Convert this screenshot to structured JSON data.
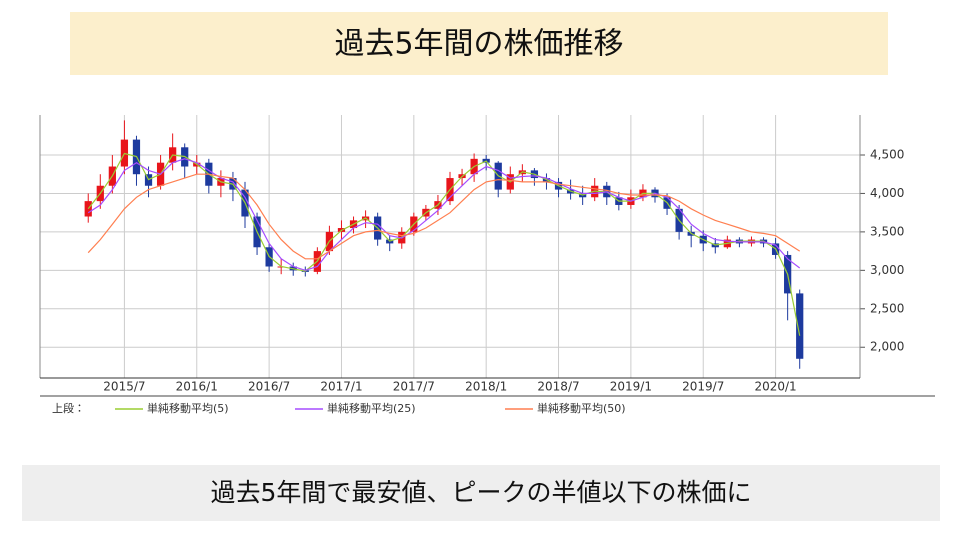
{
  "slide": {
    "title": "過去5年間の株価推移",
    "caption": "過去5年間で最安値、ピークの半値以下の株価に"
  },
  "chart_data": {
    "type": "candlestick",
    "xlim": [
      -4,
      64
    ],
    "xticks": [
      {
        "value": 3,
        "label": "2015/7"
      },
      {
        "value": 9,
        "label": "2016/1"
      },
      {
        "value": 15,
        "label": "2016/7"
      },
      {
        "value": 21,
        "label": "2017/1"
      },
      {
        "value": 27,
        "label": "2017/7"
      },
      {
        "value": 33,
        "label": "2018/1"
      },
      {
        "value": 39,
        "label": "2018/7"
      },
      {
        "value": 45,
        "label": "2019/1"
      },
      {
        "value": 51,
        "label": "2019/7"
      },
      {
        "value": 57,
        "label": "2020/1"
      }
    ],
    "ylim": [
      1600,
      5020
    ],
    "yticks": [
      {
        "value": 2000,
        "label": "2,000"
      },
      {
        "value": 2500,
        "label": "2,500"
      },
      {
        "value": 3000,
        "label": "3,000"
      },
      {
        "value": 3500,
        "label": "3,500"
      },
      {
        "value": 4000,
        "label": "4,000"
      },
      {
        "value": 4500,
        "label": "4,500"
      }
    ],
    "grid": true,
    "up_color": "#e8151b",
    "down_color": "#1d3a9e",
    "open": [
      3700,
      3900,
      4100,
      4350,
      4700,
      4250,
      4100,
      4400,
      4600,
      4350,
      4400,
      4100,
      4200,
      4050,
      3700,
      3300,
      3050,
      3050,
      3000,
      2980,
      3250,
      3500,
      3550,
      3650,
      3700,
      3400,
      3350,
      3500,
      3700,
      3800,
      3900,
      4200,
      4250,
      4450,
      4400,
      4050,
      4250,
      4300,
      4200,
      4150,
      4050,
      4000,
      3950,
      4100,
      3950,
      3850,
      3950,
      4050,
      3950,
      3800,
      3500,
      3450,
      3350,
      3300,
      3400,
      3350,
      3400,
      3350,
      3200,
      2700
    ],
    "high": [
      4000,
      4250,
      4500,
      4950,
      4750,
      4350,
      4500,
      4780,
      4650,
      4500,
      4450,
      4300,
      4280,
      4150,
      3750,
      3350,
      3150,
      3100,
      3050,
      3300,
      3580,
      3650,
      3700,
      3780,
      3750,
      3450,
      3560,
      3750,
      3850,
      3980,
      4280,
      4320,
      4520,
      4500,
      4420,
      4350,
      4380,
      4330,
      4260,
      4200,
      4180,
      4100,
      4200,
      4150,
      4020,
      4050,
      4120,
      4080,
      4000,
      3850,
      3580,
      3520,
      3420,
      3450,
      3430,
      3440,
      3430,
      3420,
      3250,
      2750
    ],
    "low": [
      3620,
      3800,
      4000,
      4250,
      4100,
      3950,
      4050,
      4300,
      4200,
      4250,
      4000,
      3950,
      3900,
      3550,
      3200,
      2980,
      2950,
      2930,
      2920,
      2950,
      3200,
      3400,
      3480,
      3550,
      3320,
      3250,
      3280,
      3450,
      3650,
      3720,
      3850,
      4100,
      4150,
      4300,
      3950,
      4000,
      4150,
      4100,
      4050,
      3950,
      3920,
      3850,
      3900,
      3850,
      3780,
      3800,
      3900,
      3880,
      3720,
      3400,
      3300,
      3250,
      3220,
      3280,
      3300,
      3310,
      3300,
      3150,
      2350,
      1720
    ],
    "close": [
      3900,
      4100,
      4350,
      4700,
      4250,
      4100,
      4400,
      4600,
      4350,
      4400,
      4100,
      4200,
      4050,
      3700,
      3300,
      3050,
      3050,
      3000,
      2980,
      3250,
      3500,
      3550,
      3650,
      3700,
      3400,
      3350,
      3500,
      3700,
      3800,
      3900,
      4200,
      4250,
      4450,
      4400,
      4050,
      4250,
      4300,
      4200,
      4150,
      4050,
      4000,
      3950,
      4100,
      3950,
      3850,
      3950,
      4050,
      3950,
      3800,
      3500,
      3450,
      3350,
      3300,
      3400,
      3350,
      3400,
      3350,
      3200,
      2700,
      1850
    ],
    "legend_title": "上段：",
    "series": [
      {
        "name": "単純移動平均(5)",
        "color": "#9acd32",
        "values": [
          3800,
          4000,
          4230,
          4520,
          4480,
          4180,
          4250,
          4500,
          4480,
          4380,
          4250,
          4150,
          4120,
          3880,
          3500,
          3180,
          3050,
          3020,
          2990,
          3120,
          3380,
          3520,
          3600,
          3680,
          3550,
          3380,
          3430,
          3600,
          3750,
          3850,
          4050,
          4220,
          4350,
          4420,
          4230,
          4150,
          4280,
          4250,
          4180,
          4100,
          4030,
          3980,
          4030,
          4020,
          3900,
          3900,
          4000,
          4000,
          3880,
          3650,
          3480,
          3400,
          3330,
          3350,
          3380,
          3380,
          3380,
          3280,
          2950,
          2150
        ]
      },
      {
        "name": "単純移動平均(25)",
        "color": "#a64dff",
        "values": [
          3750,
          3850,
          4050,
          4300,
          4400,
          4300,
          4250,
          4400,
          4450,
          4400,
          4300,
          4200,
          4150,
          3950,
          3650,
          3350,
          3150,
          3050,
          3000,
          3050,
          3250,
          3400,
          3550,
          3620,
          3600,
          3450,
          3420,
          3520,
          3650,
          3780,
          3950,
          4100,
          4250,
          4350,
          4300,
          4200,
          4220,
          4230,
          4200,
          4130,
          4060,
          4000,
          4000,
          4020,
          3950,
          3900,
          3950,
          4000,
          3950,
          3800,
          3600,
          3480,
          3400,
          3380,
          3370,
          3370,
          3370,
          3330,
          3150,
          3030
        ]
      },
      {
        "name": "単純移動平均(50)",
        "color": "#ff7f50",
        "values": [
          3230,
          3400,
          3600,
          3800,
          3950,
          4050,
          4100,
          4150,
          4200,
          4250,
          4250,
          4220,
          4200,
          4050,
          3850,
          3600,
          3400,
          3250,
          3150,
          3150,
          3250,
          3350,
          3450,
          3500,
          3520,
          3480,
          3450,
          3480,
          3550,
          3650,
          3750,
          3900,
          4050,
          4150,
          4180,
          4170,
          4150,
          4150,
          4150,
          4120,
          4100,
          4080,
          4060,
          4040,
          4000,
          3980,
          3980,
          3980,
          3970,
          3900,
          3800,
          3720,
          3650,
          3600,
          3550,
          3500,
          3480,
          3450,
          3350,
          3250
        ]
      }
    ]
  }
}
